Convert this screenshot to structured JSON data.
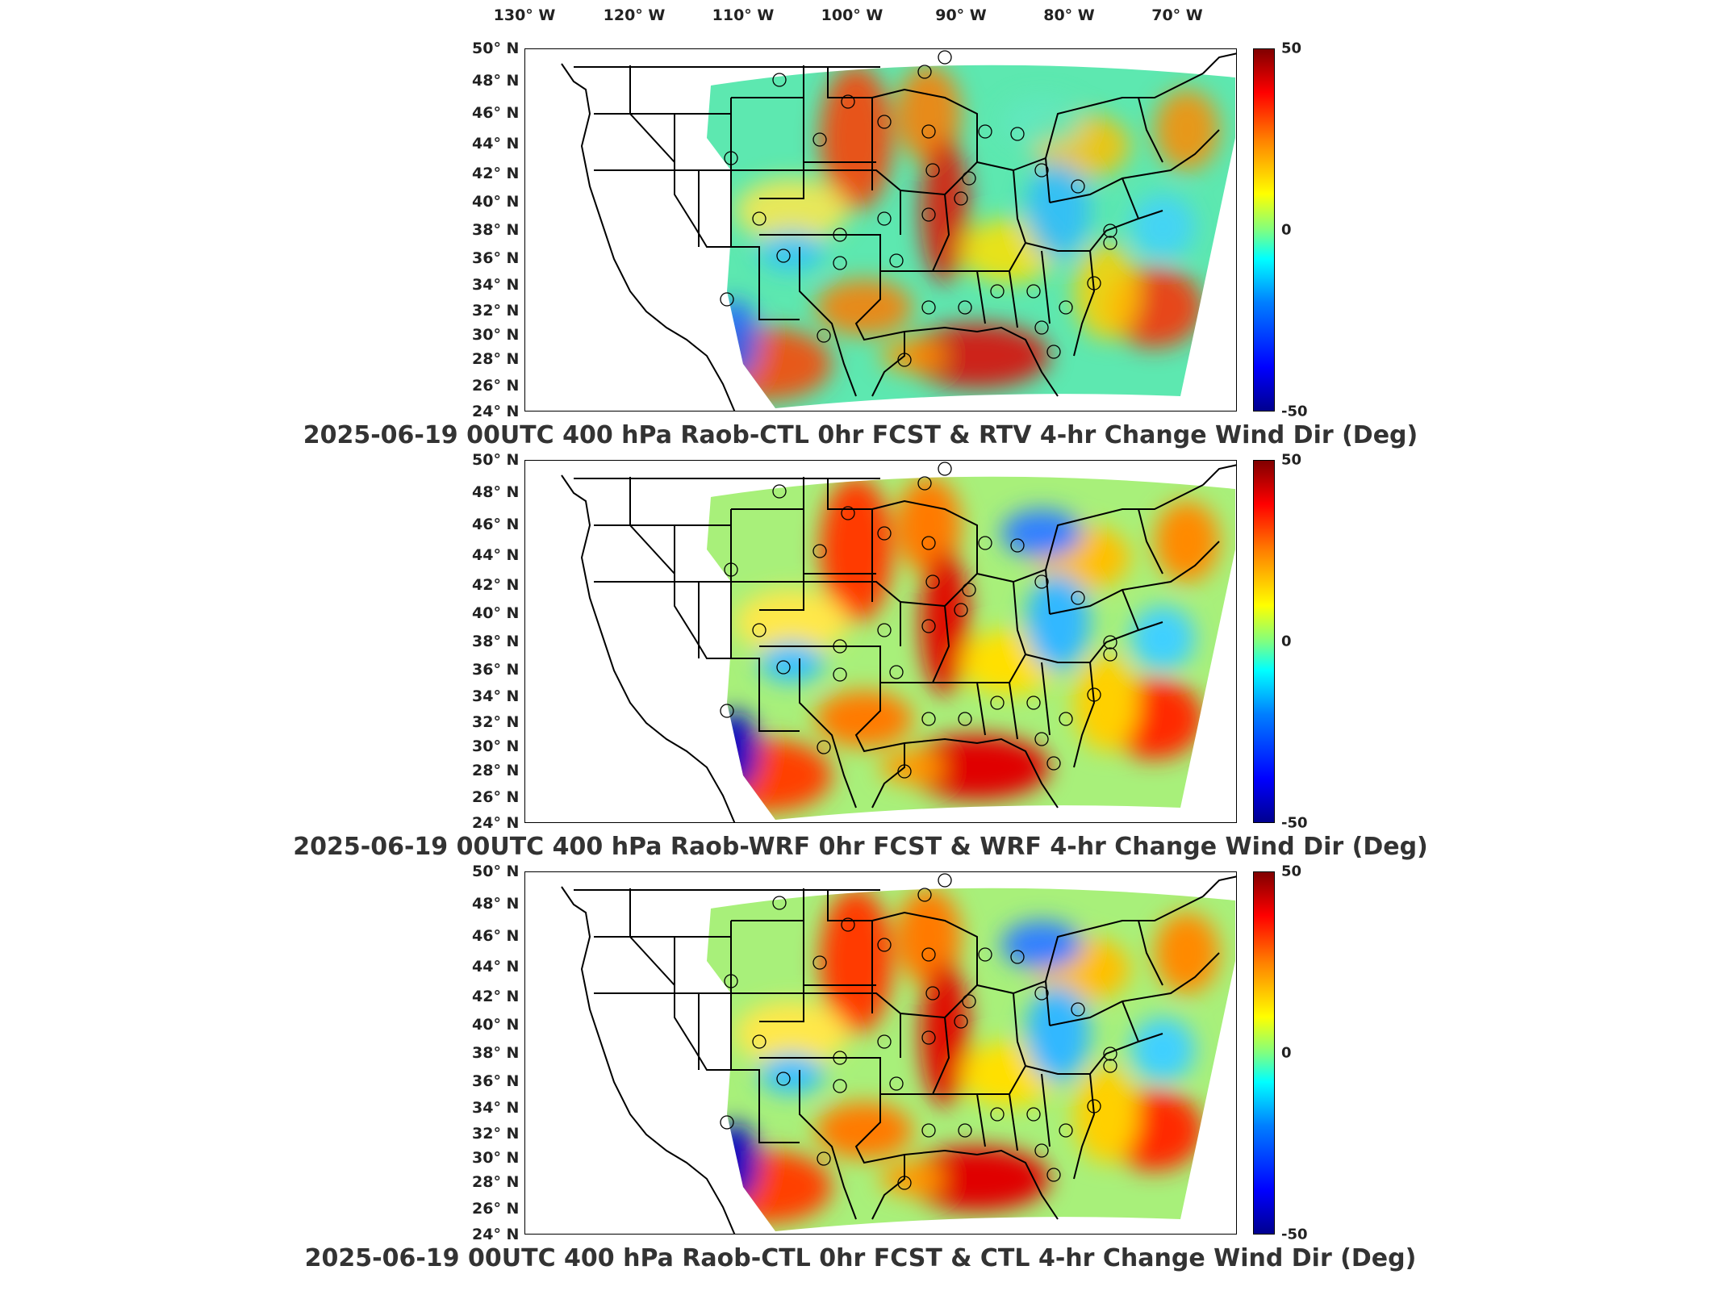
{
  "longitude_labels": [
    "130° W",
    "120° W",
    "110° W",
    "100° W",
    "90° W",
    "80° W",
    "70° W"
  ],
  "latitude_labels": [
    "50° N",
    "48° N",
    "46° N",
    "44° N",
    "42° N",
    "40° N",
    "38° N",
    "36° N",
    "34° N",
    "32° N",
    "30° N",
    "28° N",
    "26° N",
    "24° N"
  ],
  "colorbar": {
    "max_label": "50",
    "mid_label": "0",
    "min_label": "-50",
    "colors": [
      "#00008f",
      "#0000ff",
      "#0080ff",
      "#00ffff",
      "#80ff80",
      "#ffff00",
      "#ff8000",
      "#ff0000",
      "#800000"
    ]
  },
  "panels": [
    {
      "title": "2025-06-19 00UTC 400 hPa Raob-CTL 0hr FCST & RTV 4-hr Change Wind Dir (Deg)"
    },
    {
      "title": "2025-06-19 00UTC 400 hPa Raob-WRF 0hr FCST & WRF 4-hr Change Wind Dir (Deg)"
    },
    {
      "title": "2025-06-19 00UTC 400 hPa Raob-CTL 0hr FCST & CTL 4-hr Change Wind Dir (Deg)"
    }
  ]
}
